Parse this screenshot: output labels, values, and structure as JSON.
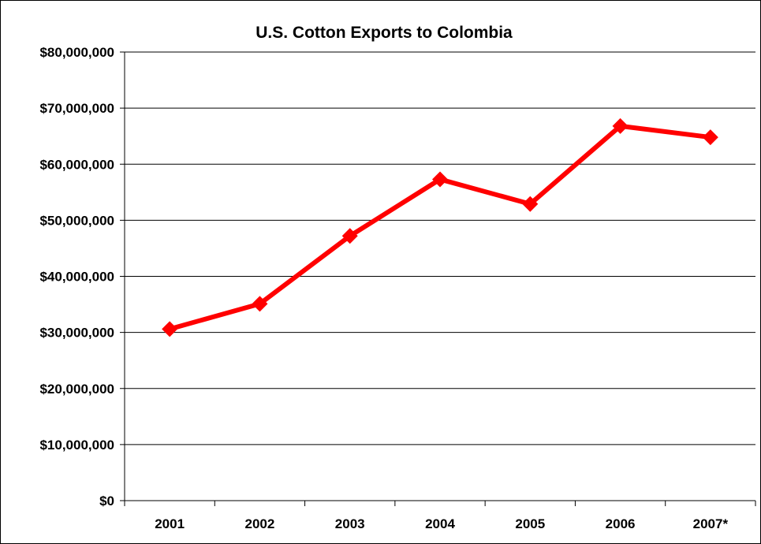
{
  "chart_data": {
    "type": "line",
    "title": "U.S. Cotton Exports to Colombia",
    "xlabel": "",
    "ylabel": "",
    "categories": [
      "2001",
      "2002",
      "2003",
      "2004",
      "2005",
      "2006",
      "2007*"
    ],
    "series": [
      {
        "values": [
          30600000,
          35100000,
          47200000,
          57300000,
          52900000,
          66800000,
          64800000
        ],
        "color": "#ff0000",
        "marker": "diamond"
      }
    ],
    "ylim": [
      0,
      80000000
    ],
    "y_ticks": [
      0,
      10000000,
      20000000,
      30000000,
      40000000,
      50000000,
      60000000,
      70000000,
      80000000
    ],
    "y_tick_labels": [
      "$0",
      "$10,000,000",
      "$20,000,000",
      "$30,000,000",
      "$40,000,000",
      "$50,000,000",
      "$60,000,000",
      "$70,000,000",
      "$80,000,000"
    ],
    "grid": true,
    "legend": "none"
  }
}
